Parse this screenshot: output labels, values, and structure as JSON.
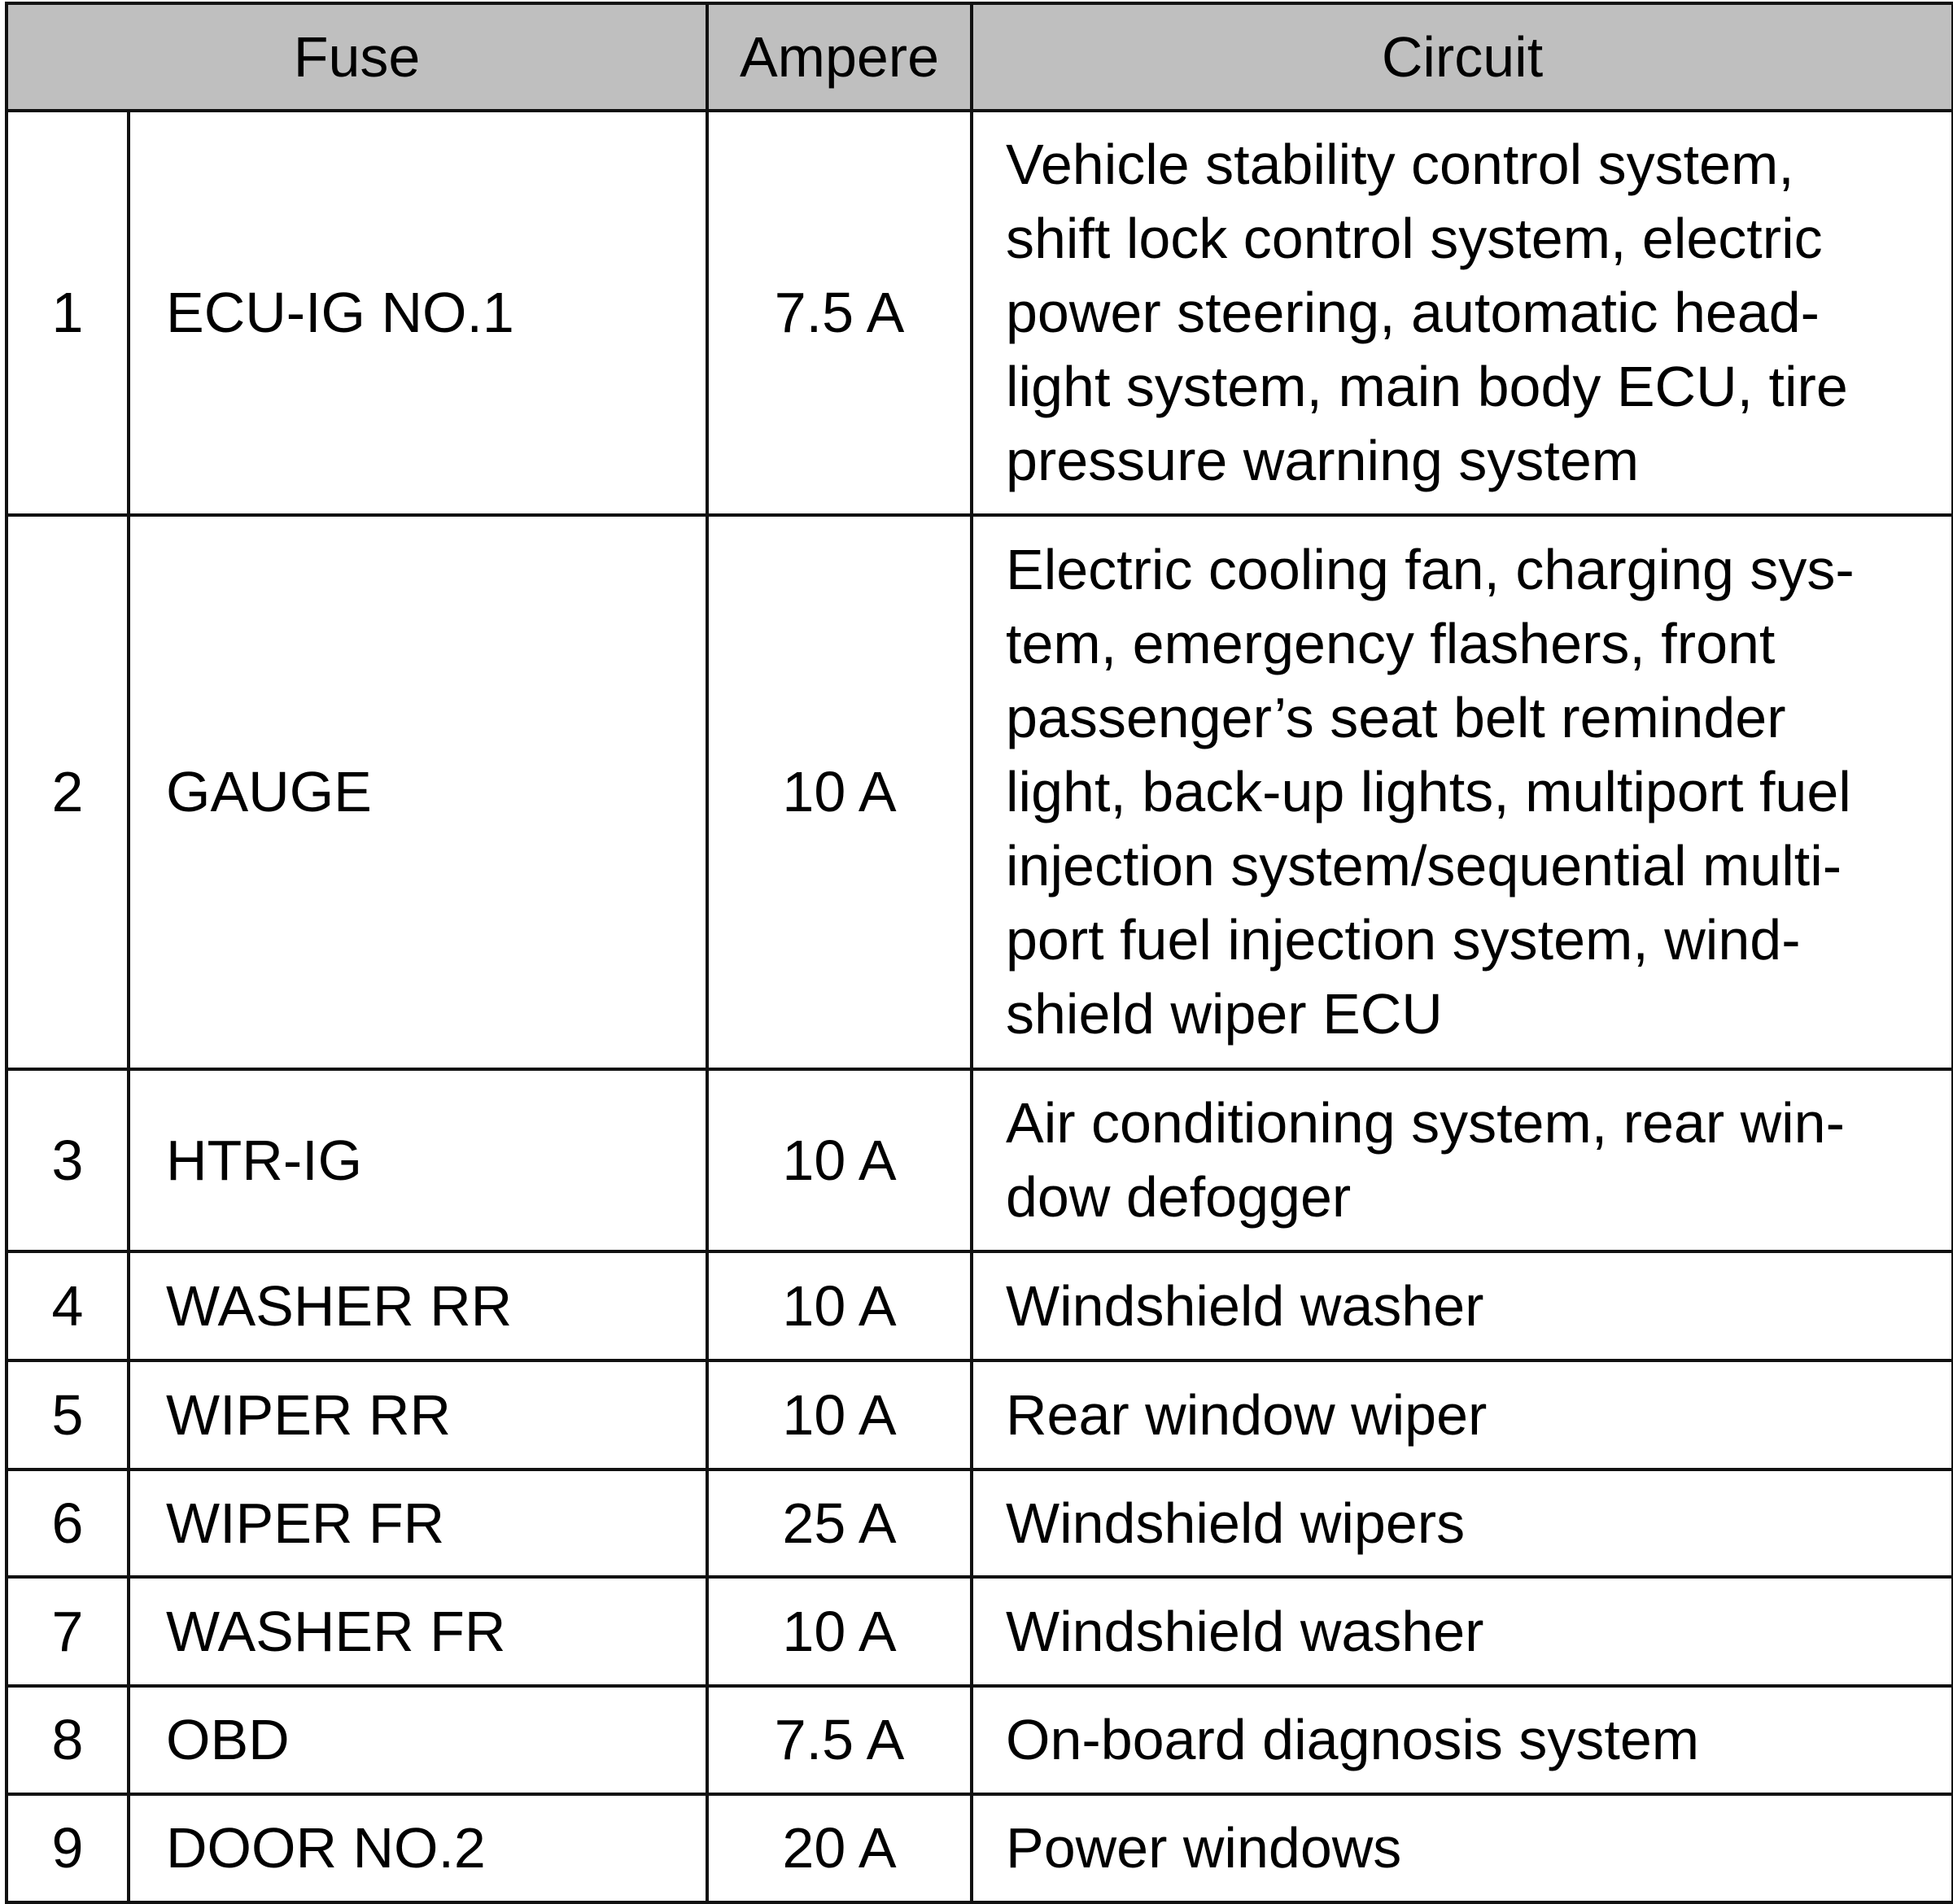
{
  "headers": {
    "fuse": "Fuse",
    "ampere": "Ampere",
    "circuit": "Circuit"
  },
  "rows": [
    {
      "num": "1",
      "name": "ECU-IG NO.1",
      "ampere": "7.5 A",
      "circuit": "Vehicle stability control system,\nshift lock control system, electric\npower steering, automatic head-\nlight system, main body ECU, tire\npressure warning system"
    },
    {
      "num": "2",
      "name": "GAUGE",
      "ampere": "10 A",
      "circuit": "Electric cooling fan, charging sys-\ntem, emergency flashers, front\npassenger’s seat belt reminder\nlight, back-up lights, multiport fuel\ninjection system/sequential multi-\nport fuel injection system, wind-\nshield wiper ECU"
    },
    {
      "num": "3",
      "name": "HTR-IG",
      "ampere": "10 A",
      "circuit": "Air conditioning system, rear win-\ndow defogger"
    },
    {
      "num": "4",
      "name": "WASHER RR",
      "ampere": "10 A",
      "circuit": "Windshield washer"
    },
    {
      "num": "5",
      "name": "WIPER RR",
      "ampere": "10 A",
      "circuit": "Rear window wiper"
    },
    {
      "num": "6",
      "name": "WIPER FR",
      "ampere": "25 A",
      "circuit": "Windshield wipers"
    },
    {
      "num": "7",
      "name": "WASHER FR",
      "ampere": "10 A",
      "circuit": "Windshield washer"
    },
    {
      "num": "8",
      "name": "OBD",
      "ampere": "7.5 A",
      "circuit": "On-board diagnosis system"
    },
    {
      "num": "9",
      "name": "DOOR NO.2",
      "ampere": "20 A",
      "circuit": "Power windows"
    }
  ]
}
